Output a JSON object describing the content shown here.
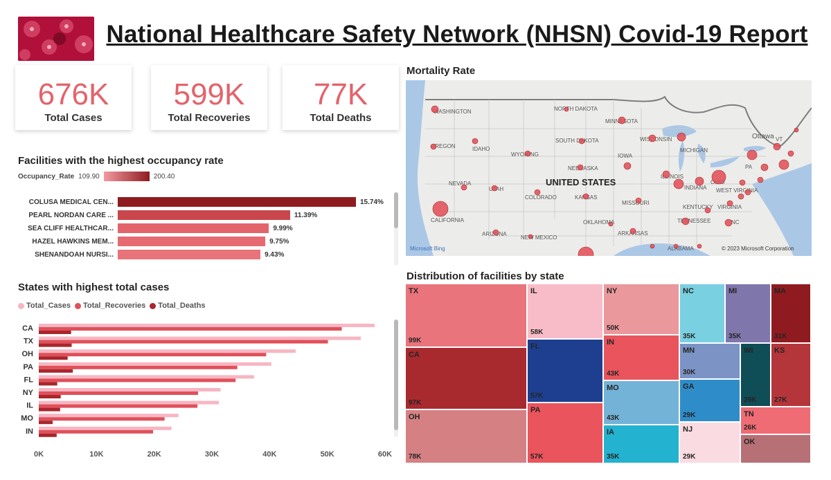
{
  "header": {
    "title": "National Healthcare Safety Network (NHSN) Covid-19 Report",
    "logo_icon": "virus-image-icon"
  },
  "kpis": [
    {
      "value": "676K",
      "label": "Total Cases"
    },
    {
      "value": "599K",
      "label": "Total Recoveries"
    },
    {
      "value": "77K",
      "label": "Total Deaths"
    }
  ],
  "occupancy": {
    "title": "Facilities with the highest occupancy rate",
    "legend_label": "Occupancy_Rate",
    "legend_min": "109.90",
    "legend_max": "200.40",
    "rows": [
      {
        "name": "COLUSA MEDICAL CEN...",
        "label": "15.74%",
        "value": 15.74,
        "color": "#8e1b1f"
      },
      {
        "name": "PEARL NORDAN CARE ...",
        "label": "11.39%",
        "value": 11.39,
        "color": "#c9464d"
      },
      {
        "name": "SEA CLIFF HEALTHCAR...",
        "label": "9.99%",
        "value": 9.99,
        "color": "#e3636b"
      },
      {
        "name": "HAZEL HAWKINS MEM...",
        "label": "9.75%",
        "value": 9.75,
        "color": "#e56a72"
      },
      {
        "name": "SHENANDOAH NURSI...",
        "label": "9.43%",
        "value": 9.43,
        "color": "#e8737a"
      }
    ]
  },
  "chart_data": {
    "type": "bar",
    "orientation": "horizontal",
    "title": "States with highest total cases",
    "categories": [
      "CA",
      "TX",
      "OH",
      "PA",
      "FL",
      "NY",
      "IL",
      "MO",
      "IN"
    ],
    "series": [
      {
        "name": "Total_Cases",
        "color": "#f7b6c2",
        "values": [
          58200,
          55800,
          44500,
          40300,
          37300,
          31500,
          31200,
          24200,
          23000
        ]
      },
      {
        "name": "Total_Recoveries",
        "color": "#e0505a",
        "values": [
          52500,
          50100,
          39400,
          34400,
          34100,
          27600,
          27500,
          21800,
          19800
        ]
      },
      {
        "name": "Total_Deaths",
        "color": "#a8262c",
        "values": [
          5600,
          5700,
          5000,
          5900,
          3200,
          3800,
          3700,
          2400,
          3100
        ]
      }
    ],
    "xlim": [
      0,
      60000
    ],
    "xticks": [
      "0K",
      "10K",
      "20K",
      "30K",
      "40K",
      "50K",
      "60K"
    ]
  },
  "map": {
    "title": "Mortality Rate",
    "country_label": "UNITED STATES",
    "attribution_left": "Microsoft Bing",
    "attribution_right": "© 2023 Microsoft Corporation",
    "labels": [
      "WASHINGTON",
      "OREGON",
      "IDAHO",
      "NEVADA",
      "CALIFORNIA",
      "UTAH",
      "ARIZONA",
      "WYOMING",
      "COLORADO",
      "NEW MEXICO",
      "NORTH DAKOTA",
      "SOUTH DAKOTA",
      "NEBRASKA",
      "KANSAS",
      "OKLAHOMA",
      "MINNESOTA",
      "IOWA",
      "MISSOURI",
      "ARKANSAS",
      "WISCONSIN",
      "ILLINOIS",
      "MICHIGAN",
      "INDIANA",
      "OHIO",
      "KENTUCKY",
      "TENNESSEE",
      "ALABAMA",
      "WEST VIRGINIA",
      "VIRGINIA",
      "NC",
      "PA",
      "Ottawa",
      "VT"
    ]
  },
  "treemap": {
    "title": "Distribution of facilities by state",
    "cells": [
      {
        "state": "TX",
        "value": "99K",
        "color": "#e9747b"
      },
      {
        "state": "CA",
        "value": "97K",
        "color": "#a82a2f"
      },
      {
        "state": "OH",
        "value": "78K",
        "color": "#d58184"
      },
      {
        "state": "IL",
        "value": "58K",
        "color": "#f8bcc8"
      },
      {
        "state": "FL",
        "value": "57K",
        "color": "#1e3f8f"
      },
      {
        "state": "PA",
        "value": "57K",
        "color": "#e9545d"
      },
      {
        "state": "NY",
        "value": "50K",
        "color": "#ea989c"
      },
      {
        "state": "IN",
        "value": "43K",
        "color": "#e9545d"
      },
      {
        "state": "MO",
        "value": "43K",
        "color": "#74b3d8"
      },
      {
        "state": "IA",
        "value": "35K",
        "color": "#23b2cf"
      },
      {
        "state": "NC",
        "value": "35K",
        "color": "#79d0e0"
      },
      {
        "state": "MI",
        "value": "35K",
        "color": "#7f77ac"
      },
      {
        "state": "MA",
        "value": "31K",
        "color": "#8f1b20"
      },
      {
        "state": "MN",
        "value": "30K",
        "color": "#7b94c5"
      },
      {
        "state": "GA",
        "value": "29K",
        "color": "#2e8dc9"
      },
      {
        "state": "NJ",
        "value": "29K",
        "color": "#fbdbe2"
      },
      {
        "state": "WI",
        "value": "29K",
        "color": "#0f4d57"
      },
      {
        "state": "KS",
        "value": "27K",
        "color": "#b4353a"
      },
      {
        "state": "TN",
        "value": "26K",
        "color": "#ef6c74"
      },
      {
        "state": "OK",
        "value": "",
        "color": "#b77076"
      }
    ]
  }
}
